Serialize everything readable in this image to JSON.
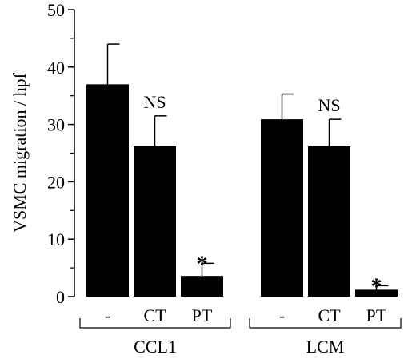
{
  "chart_data": {
    "type": "bar",
    "title": "",
    "xlabel": "",
    "ylabel": "VSMC migration / hpf",
    "ylim": [
      0,
      50
    ],
    "yticks": [
      0,
      10,
      20,
      30,
      40,
      50
    ],
    "grid": false,
    "groups": [
      {
        "name": "CCL1",
        "bars": [
          {
            "label": "-",
            "value": 37,
            "error": 7,
            "annotation": ""
          },
          {
            "label": "CT",
            "value": 26.2,
            "error": 5.3,
            "annotation": "NS"
          },
          {
            "label": "PT",
            "value": 3.6,
            "error": 2.2,
            "annotation": "*"
          }
        ]
      },
      {
        "name": "LCM",
        "bars": [
          {
            "label": "-",
            "value": 30.9,
            "error": 4.4,
            "annotation": ""
          },
          {
            "label": "CT",
            "value": 26.2,
            "error": 4.7,
            "annotation": "NS"
          },
          {
            "label": "PT",
            "value": 1.2,
            "error": 0.7,
            "annotation": "*"
          }
        ]
      }
    ],
    "bar_color": "#000000"
  }
}
